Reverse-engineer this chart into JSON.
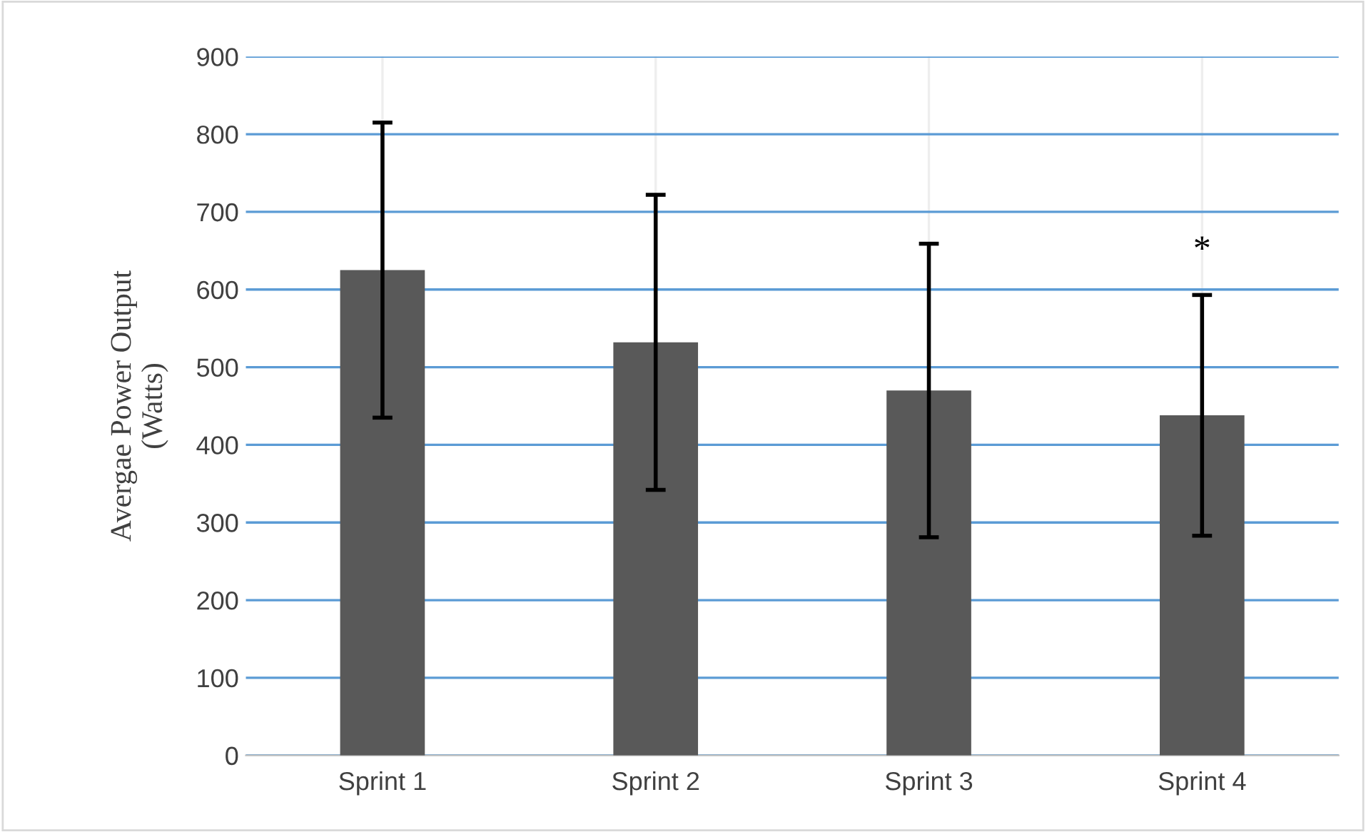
{
  "chart_data": {
    "type": "bar",
    "ylabel": "Avergae Power Output\n(Watts)",
    "categories": [
      "Sprint 1",
      "Sprint 2",
      "Sprint 3",
      "Sprint 4"
    ],
    "values": [
      625,
      532,
      470,
      438
    ],
    "errors": [
      190,
      190,
      189,
      155
    ],
    "color": "#595959",
    "ylim": [
      0,
      900
    ],
    "yticks": [
      0,
      100,
      200,
      300,
      400,
      500,
      600,
      700,
      800,
      900
    ],
    "grid": true,
    "annotations": [
      "*"
    ]
  }
}
